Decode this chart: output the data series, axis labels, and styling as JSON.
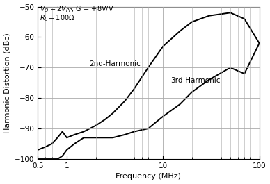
{
  "title": "",
  "xlabel": "Frequency (MHz)",
  "ylabel": "Harmonic Distortion (dBc)",
  "xlim": [
    0.5,
    100
  ],
  "ylim": [
    -100,
    -50
  ],
  "yticks": [
    -100,
    -90,
    -80,
    -70,
    -60,
    -50
  ],
  "background_color": "#ffffff",
  "grid_color": "#aaaaaa",
  "line_color": "#000000",
  "label_2nd": "2nd-Harmonic",
  "label_3rd": "3rd-Harmonic",
  "annotation_line1": "V_O = 2V_PP, G = +8V/V",
  "annotation_line2": "R_L = 100Ω",
  "freq_2nd": [
    0.5,
    0.6,
    0.7,
    0.8,
    0.9,
    1.0,
    1.2,
    1.5,
    2.0,
    2.5,
    3.0,
    4.0,
    5.0,
    7.0,
    10.0,
    15.0,
    20.0,
    30.0,
    50.0,
    70.0,
    100.0
  ],
  "hd2": [
    -97,
    -96,
    -95,
    -93,
    -91,
    -93,
    -92,
    -91,
    -89,
    -87,
    -85,
    -81,
    -77,
    -70,
    -63,
    -58,
    -55,
    -53,
    -52,
    -54,
    -62
  ],
  "freq_3rd": [
    0.5,
    0.6,
    0.7,
    0.8,
    0.9,
    1.0,
    1.2,
    1.5,
    2.0,
    2.5,
    3.0,
    4.0,
    5.0,
    7.0,
    10.0,
    15.0,
    20.0,
    30.0,
    50.0,
    70.0,
    100.0
  ],
  "hd3": [
    -100,
    -100,
    -100,
    -100,
    -99,
    -97,
    -95,
    -93,
    -93,
    -93,
    -93,
    -92,
    -91,
    -90,
    -86,
    -82,
    -78,
    -74,
    -70,
    -72,
    -62
  ]
}
